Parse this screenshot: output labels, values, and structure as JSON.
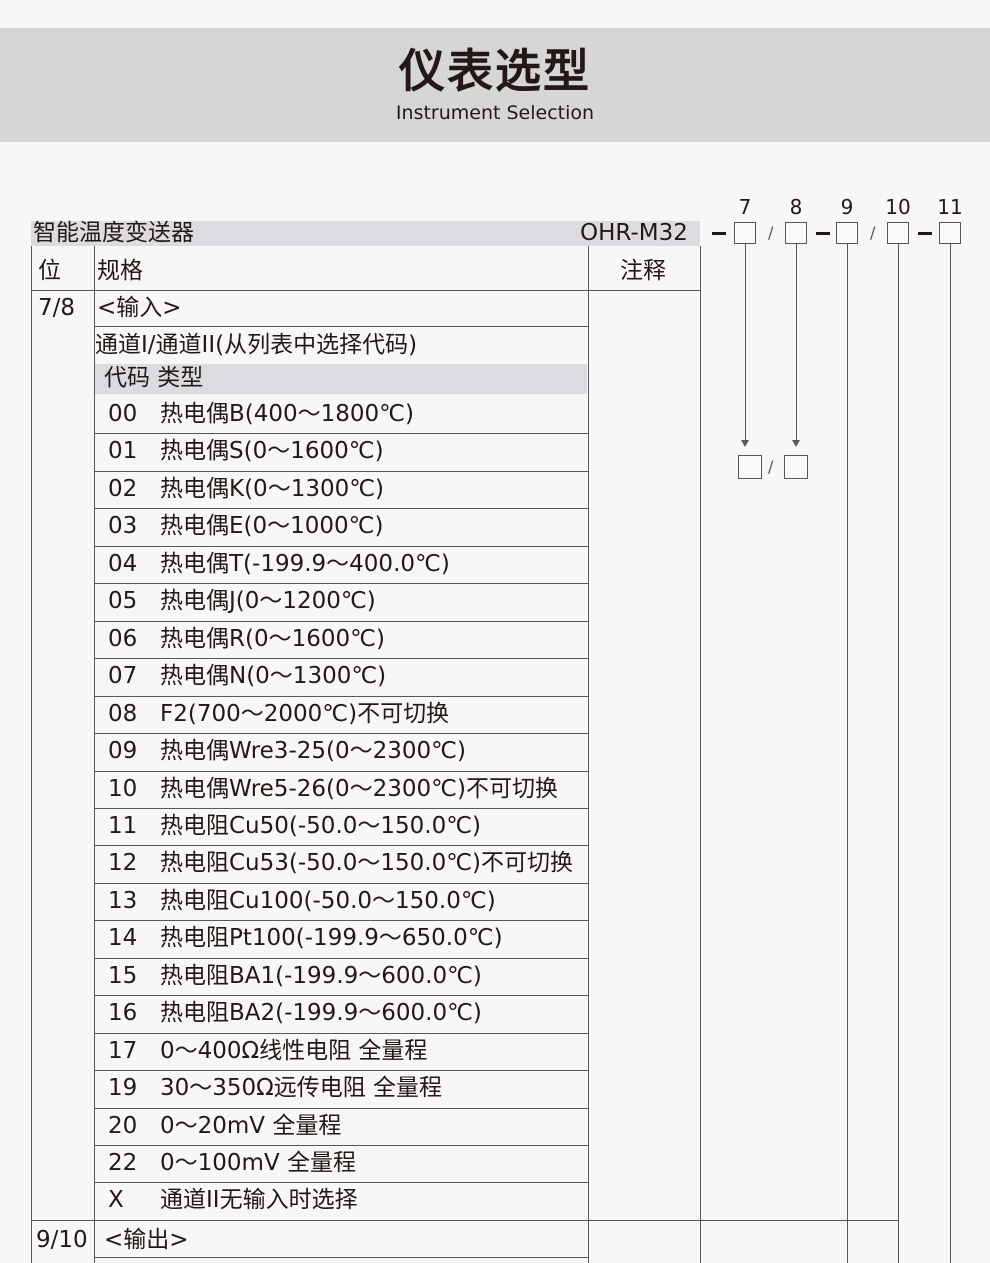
{
  "header": {
    "title": "仪表选型",
    "subtitle": "Instrument Selection"
  },
  "product": {
    "name": "智能温度变送器",
    "model": "OHR-M32"
  },
  "positions": [
    "7",
    "8",
    "9",
    "10",
    "11"
  ],
  "table": {
    "col_headers": [
      "位",
      "规格",
      "注释"
    ],
    "section1": {
      "pos": "7/8",
      "label": "<输入>",
      "subtitle": "通道I/通道II(从列表中选择代码)",
      "code_header": "代码 类型"
    },
    "rows": [
      {
        "code": "00",
        "type": "热电偶B(400～1800℃)"
      },
      {
        "code": "01",
        "type": "热电偶S(0～1600℃)"
      },
      {
        "code": "02",
        "type": "热电偶K(0～1300℃)"
      },
      {
        "code": "03",
        "type": "热电偶E(0～1000℃)"
      },
      {
        "code": "04",
        "type": "热电偶T(-199.9～400.0℃)"
      },
      {
        "code": "05",
        "type": "热电偶J(0～1200℃)"
      },
      {
        "code": "06",
        "type": "热电偶R(0～1600℃)"
      },
      {
        "code": "07",
        "type": "热电偶N(0～1300℃)"
      },
      {
        "code": "08",
        "type": "F2(700～2000℃)不可切换"
      },
      {
        "code": "09",
        "type": "热电偶Wre3-25(0～2300℃)"
      },
      {
        "code": "10",
        "type": "热电偶Wre5-26(0～2300℃)不可切换"
      },
      {
        "code": "11",
        "type": "热电阻Cu50(-50.0～150.0℃)"
      },
      {
        "code": "12",
        "type": "热电阻Cu53(-50.0～150.0℃)不可切换"
      },
      {
        "code": "13",
        "type": "热电阻Cu100(-50.0～150.0℃)"
      },
      {
        "code": "14",
        "type": "热电阻Pt100(-199.9～650.0℃)"
      },
      {
        "code": "15",
        "type": "热电阻BA1(-199.9～600.0℃)"
      },
      {
        "code": "16",
        "type": "热电阻BA2(-199.9～600.0℃)"
      },
      {
        "code": "17",
        "type": "0～400Ω线性电阻 全量程"
      },
      {
        "code": "19",
        "type": "30～350Ω远传电阻  全量程"
      },
      {
        "code": "20",
        "type": "0～20mV 全量程"
      },
      {
        "code": "22",
        "type": "0～100mV 全量程"
      },
      {
        "code": "X",
        "type": "通道II无输入时选择"
      }
    ],
    "section2": {
      "pos": "9/10",
      "label": "<输出>"
    }
  }
}
